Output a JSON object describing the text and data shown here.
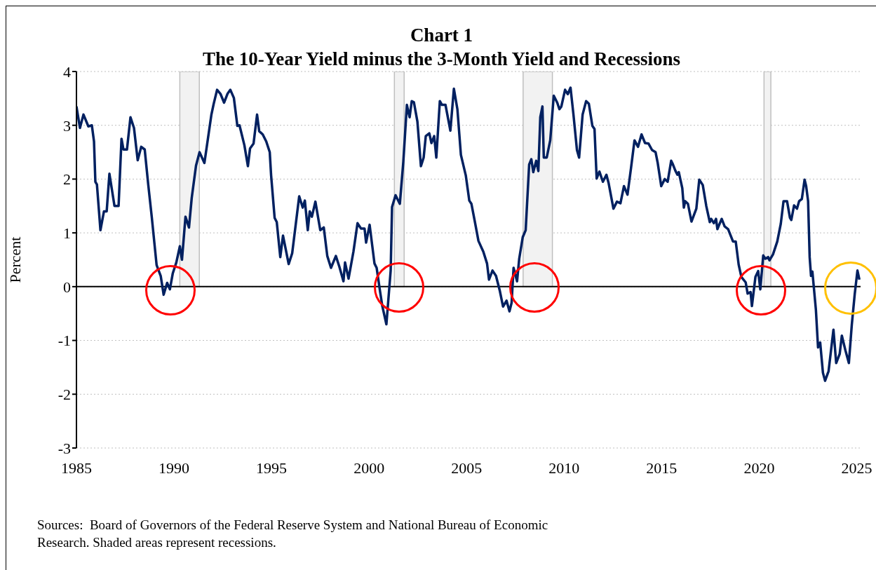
{
  "chart_data": {
    "type": "line",
    "title": "Chart 1",
    "subtitle": "The 10-Year Yield minus the 3-Month Yield and Recessions",
    "ylabel": "Percent",
    "annotations": [
      "Sources:  Board of Governors of the Federal Reserve System and National Bureau of Economic Research. Shaded areas represent recessions."
    ],
    "xlim": [
      1985,
      2025.2
    ],
    "xticks": [
      1985,
      1990,
      1995,
      2000,
      2005,
      2010,
      2015,
      2020,
      2025
    ],
    "ylim": [
      -3,
      4
    ],
    "yticks": [
      -3,
      -2,
      -1,
      0,
      1,
      2,
      3,
      4
    ],
    "grid": "y",
    "marker": "none",
    "line_style": "solid",
    "ref_lines": [
      {
        "axis": "y",
        "value": 0,
        "color": "#000000"
      }
    ],
    "bands": [
      {
        "axis": "x",
        "from": 1990.3,
        "to": 1991.3,
        "color": "#f2f2f2"
      },
      {
        "axis": "x",
        "from": 2001.3,
        "to": 2001.8,
        "color": "#f2f2f2"
      },
      {
        "axis": "x",
        "from": 2007.9,
        "to": 2009.4,
        "color": "#f2f2f2"
      },
      {
        "axis": "x",
        "from": 2020.25,
        "to": 2020.6,
        "color": "#f2f2f2"
      }
    ],
    "series": [
      {
        "color": "#002060",
        "x": [
          1985.0,
          1985.18,
          1985.36,
          1985.61,
          1985.79,
          1985.9,
          1985.97,
          1986.05,
          1986.23,
          1986.41,
          1986.55,
          1986.69,
          1986.95,
          1987.16,
          1987.31,
          1987.41,
          1987.59,
          1987.77,
          1987.95,
          1988.14,
          1988.32,
          1988.5,
          1988.68,
          1988.86,
          1989.11,
          1989.32,
          1989.47,
          1989.65,
          1989.79,
          1989.94,
          1990.12,
          1990.3,
          1990.41,
          1990.59,
          1990.77,
          1990.91,
          1991.13,
          1991.31,
          1991.56,
          1991.92,
          1992.03,
          1992.21,
          1992.39,
          1992.57,
          1992.75,
          1992.89,
          1993.07,
          1993.25,
          1993.36,
          1993.61,
          1993.79,
          1993.9,
          1994.08,
          1994.26,
          1994.37,
          1994.55,
          1994.73,
          1994.91,
          1994.98,
          1995.16,
          1995.27,
          1995.45,
          1995.59,
          1995.88,
          1996.06,
          1996.42,
          1996.6,
          1996.71,
          1996.86,
          1996.96,
          1997.07,
          1997.25,
          1997.5,
          1997.68,
          1997.86,
          1998.05,
          1998.3,
          1998.48,
          1998.69,
          1998.77,
          1998.95,
          1999.2,
          1999.41,
          1999.59,
          1999.77,
          1999.85,
          2000.03,
          2000.28,
          2000.39,
          2000.57,
          2000.68,
          2000.89,
          2001.11,
          2001.18,
          2001.36,
          2001.58,
          2001.76,
          2001.94,
          2002.08,
          2002.19,
          2002.3,
          2002.48,
          2002.66,
          2002.8,
          2002.91,
          2003.09,
          2003.2,
          2003.34,
          2003.45,
          2003.63,
          2003.74,
          2003.92,
          2004.17,
          2004.35,
          2004.53,
          2004.71,
          2004.96,
          2005.14,
          2005.25,
          2005.43,
          2005.61,
          2005.86,
          2006.05,
          2006.15,
          2006.33,
          2006.51,
          2006.7,
          2006.87,
          2007.05,
          2007.2,
          2007.31,
          2007.41,
          2007.59,
          2007.7,
          2007.88,
          2008.03,
          2008.21,
          2008.32,
          2008.42,
          2008.57,
          2008.68,
          2008.78,
          2008.89,
          2008.96,
          2009.11,
          2009.29,
          2009.47,
          2009.65,
          2009.76,
          2009.86,
          2010.05,
          2010.19,
          2010.33,
          2010.48,
          2010.66,
          2010.77,
          2010.95,
          2011.13,
          2011.27,
          2011.45,
          2011.56,
          2011.67,
          2011.81,
          2011.99,
          2012.17,
          2012.28,
          2012.53,
          2012.71,
          2012.89,
          2013.07,
          2013.25,
          2013.43,
          2013.61,
          2013.79,
          2013.97,
          2014.15,
          2014.33,
          2014.51,
          2014.69,
          2014.8,
          2014.98,
          2015.16,
          2015.31,
          2015.49,
          2015.56,
          2015.7,
          2015.81,
          2015.88,
          2016.06,
          2016.14,
          2016.21,
          2016.35,
          2016.53,
          2016.78,
          2016.93,
          2017.11,
          2017.29,
          2017.47,
          2017.54,
          2017.68,
          2017.79,
          2017.86,
          2018.08,
          2018.23,
          2018.41,
          2018.66,
          2018.8,
          2018.95,
          2019.09,
          2019.31,
          2019.41,
          2019.56,
          2019.63,
          2019.81,
          2019.95,
          2020.06,
          2020.21,
          2020.32,
          2020.46,
          2020.53,
          2020.71,
          2020.93,
          2021.11,
          2021.25,
          2021.43,
          2021.58,
          2021.65,
          2021.79,
          2021.94,
          2022.05,
          2022.19,
          2022.33,
          2022.41,
          2022.51,
          2022.59,
          2022.66,
          2022.73,
          2022.91,
          2023.02,
          2023.13,
          2023.27,
          2023.38,
          2023.56,
          2023.81,
          2023.95,
          2024.13,
          2024.24,
          2024.42,
          2024.6,
          2024.75,
          2024.9,
          2025.04,
          2025.14
        ],
        "values": [
          3.35,
          2.95,
          3.2,
          2.98,
          3.0,
          2.7,
          1.95,
          1.9,
          1.05,
          1.4,
          1.4,
          2.1,
          1.5,
          1.5,
          2.75,
          2.55,
          2.55,
          3.15,
          2.95,
          2.35,
          2.6,
          2.55,
          1.9,
          1.3,
          0.4,
          0.2,
          -0.15,
          0.07,
          -0.05,
          0.25,
          0.45,
          0.75,
          0.5,
          1.3,
          1.1,
          1.65,
          2.25,
          2.5,
          2.3,
          3.2,
          3.39,
          3.66,
          3.58,
          3.42,
          3.59,
          3.66,
          3.51,
          2.99,
          3.0,
          2.63,
          2.24,
          2.57,
          2.66,
          3.2,
          2.89,
          2.83,
          2.7,
          2.5,
          2.07,
          1.28,
          1.2,
          0.55,
          0.95,
          0.42,
          0.62,
          1.68,
          1.47,
          1.6,
          1.05,
          1.4,
          1.3,
          1.58,
          1.05,
          1.1,
          0.57,
          0.35,
          0.57,
          0.37,
          0.1,
          0.45,
          0.15,
          0.65,
          1.18,
          1.08,
          1.08,
          0.82,
          1.15,
          0.43,
          0.35,
          -0.1,
          -0.36,
          -0.7,
          0.3,
          1.48,
          1.7,
          1.54,
          2.33,
          3.38,
          3.15,
          3.45,
          3.43,
          3.07,
          2.24,
          2.4,
          2.8,
          2.85,
          2.67,
          2.8,
          2.4,
          3.45,
          3.38,
          3.38,
          2.9,
          3.68,
          3.3,
          2.45,
          2.07,
          1.6,
          1.54,
          1.2,
          0.85,
          0.65,
          0.43,
          0.13,
          0.3,
          0.2,
          -0.07,
          -0.37,
          -0.26,
          -0.46,
          -0.3,
          0.35,
          0.1,
          0.52,
          0.92,
          1.05,
          2.27,
          2.37,
          2.13,
          2.34,
          2.15,
          3.15,
          3.35,
          2.4,
          2.4,
          2.72,
          3.55,
          3.42,
          3.3,
          3.35,
          3.66,
          3.58,
          3.7,
          3.2,
          2.54,
          2.4,
          3.2,
          3.45,
          3.4,
          2.99,
          2.93,
          2.01,
          2.14,
          1.95,
          2.08,
          1.93,
          1.45,
          1.58,
          1.55,
          1.87,
          1.71,
          2.2,
          2.72,
          2.6,
          2.83,
          2.67,
          2.66,
          2.54,
          2.5,
          2.3,
          1.87,
          2.0,
          1.95,
          2.34,
          2.29,
          2.16,
          2.08,
          2.13,
          1.83,
          1.47,
          1.59,
          1.54,
          1.21,
          1.45,
          1.99,
          1.89,
          1.5,
          1.2,
          1.26,
          1.18,
          1.26,
          1.07,
          1.26,
          1.12,
          1.07,
          0.84,
          0.84,
          0.41,
          0.18,
          0.08,
          -0.13,
          -0.1,
          -0.36,
          0.18,
          0.29,
          -0.05,
          0.58,
          0.52,
          0.55,
          0.49,
          0.6,
          0.84,
          1.17,
          1.59,
          1.59,
          1.28,
          1.24,
          1.51,
          1.45,
          1.59,
          1.63,
          1.99,
          1.87,
          1.59,
          0.55,
          0.2,
          0.28,
          -0.43,
          -1.13,
          -1.04,
          -1.6,
          -1.75,
          -1.57,
          -0.8,
          -1.42,
          -1.25,
          -0.91,
          -1.18,
          -1.42,
          -0.71,
          -0.14,
          0.3,
          0.13
        ]
      }
    ]
  }
}
